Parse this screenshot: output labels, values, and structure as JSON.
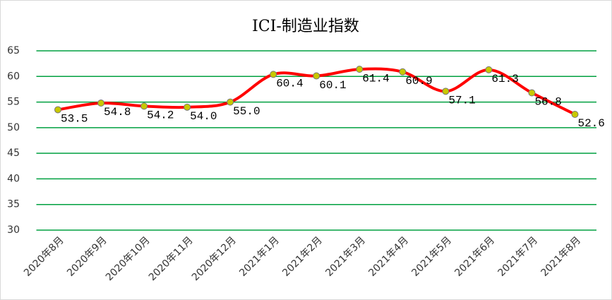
{
  "chart_data": {
    "type": "line",
    "title": "ICI-制造业指数",
    "categories": [
      "2020年8月",
      "2020年9月",
      "2020年10月",
      "2020年11月",
      "2020年12月",
      "2021年1月",
      "2021年2月",
      "2021年3月",
      "2021年4月",
      "2021年5月",
      "2021年6月",
      "2021年7月",
      "2021年8月"
    ],
    "values": [
      53.5,
      54.8,
      54.2,
      54.0,
      55.0,
      60.4,
      60.1,
      61.4,
      60.9,
      57.1,
      61.3,
      56.8,
      52.6
    ],
    "value_labels": [
      "53.5",
      "54.8",
      "54.2",
      "54.0",
      "55.0",
      "60.4",
      "60.1",
      "61.4",
      "60.9",
      "57.1",
      "61.3",
      "56.8",
      "52.6"
    ],
    "color": "#ff0000",
    "marker_color": "#c8c800",
    "ylim": [
      30,
      65
    ],
    "yticks": [
      30,
      35,
      40,
      45,
      50,
      55,
      60,
      65
    ],
    "grid": true,
    "grid_color": "#00a040",
    "smooth": true
  }
}
